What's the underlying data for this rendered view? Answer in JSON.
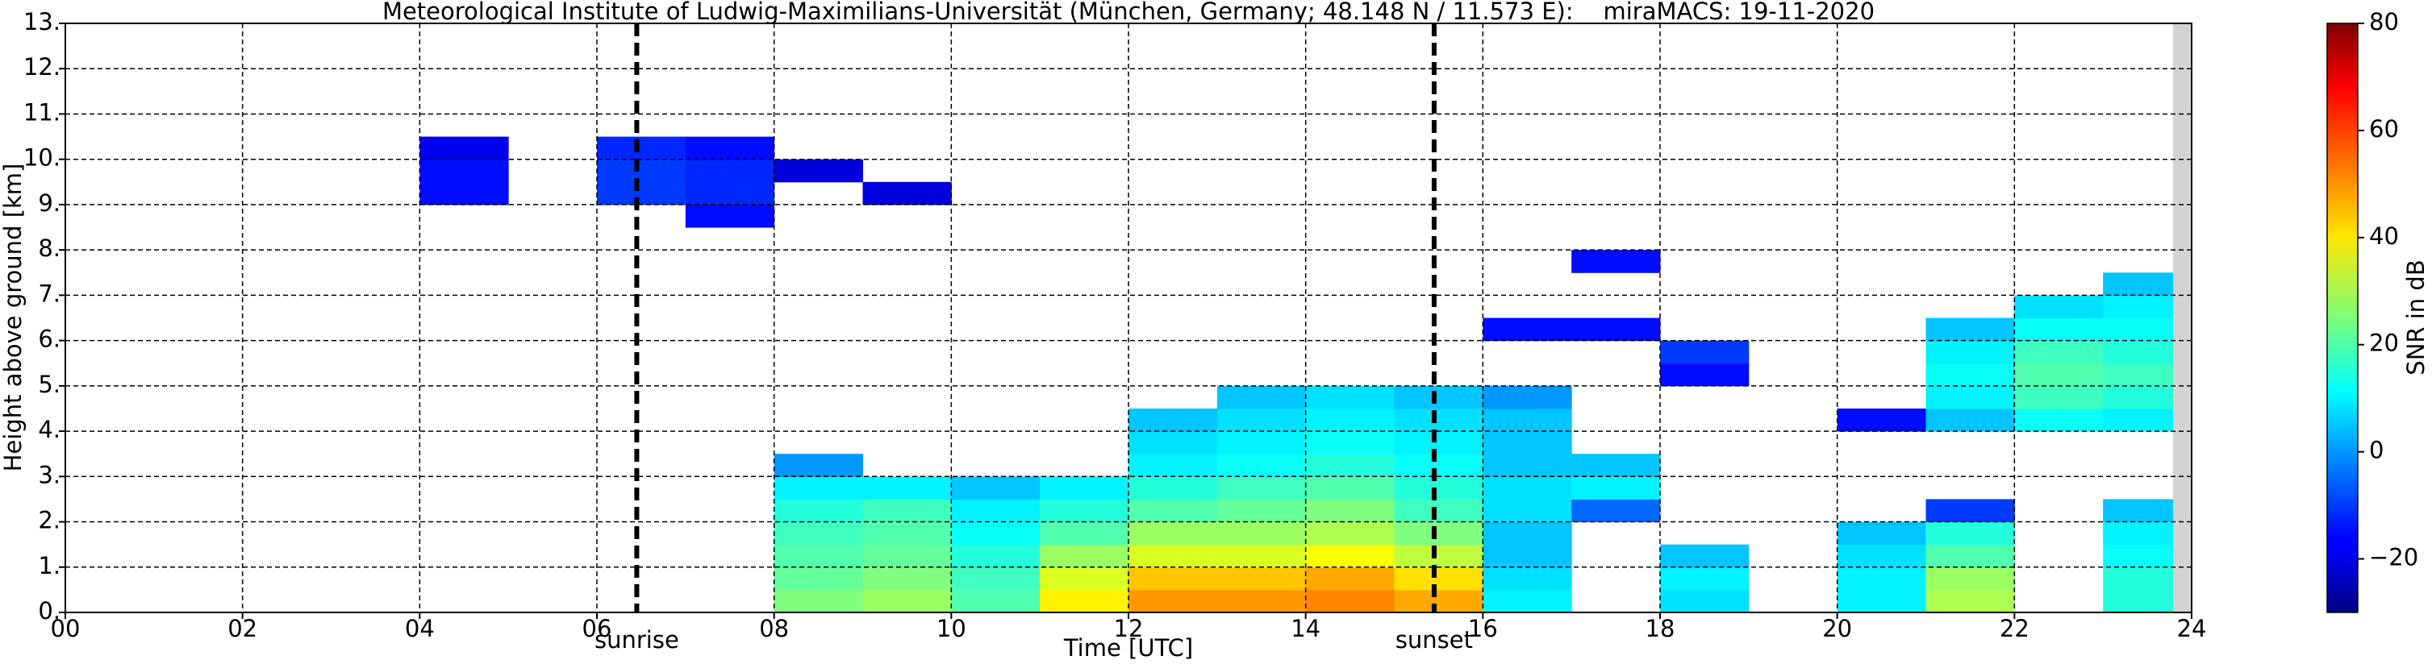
{
  "chart_data": {
    "type": "heatmap",
    "title": "Meteorological Institute of Ludwig-Maximilians-Universität (München, Germany; 48.148 N / 11.573 E):    miraMACS: 19-11-2020",
    "xlabel": "Time [UTC]",
    "ylabel": "Height above ground [km]",
    "colorbar_label": "SNR in dB",
    "colormap": "jet",
    "grid": true,
    "xlim": [
      0,
      24
    ],
    "ylim": [
      0,
      13
    ],
    "clim": [
      -30,
      80
    ],
    "xticks": [
      {
        "value": 0,
        "label": "00"
      },
      {
        "value": 2,
        "label": "02"
      },
      {
        "value": 4,
        "label": "04"
      },
      {
        "value": 6,
        "label": "06"
      },
      {
        "value": 8,
        "label": "08"
      },
      {
        "value": 10,
        "label": "10"
      },
      {
        "value": 12,
        "label": "12"
      },
      {
        "value": 14,
        "label": "14"
      },
      {
        "value": 16,
        "label": "16"
      },
      {
        "value": 18,
        "label": "18"
      },
      {
        "value": 20,
        "label": "20"
      },
      {
        "value": 22,
        "label": "22"
      },
      {
        "value": 24,
        "label": "24"
      }
    ],
    "yticks": [
      {
        "value": 0,
        "label": "0."
      },
      {
        "value": 1,
        "label": "1."
      },
      {
        "value": 2,
        "label": "2."
      },
      {
        "value": 3,
        "label": "3."
      },
      {
        "value": 4,
        "label": "4."
      },
      {
        "value": 5,
        "label": "5."
      },
      {
        "value": 6,
        "label": "6."
      },
      {
        "value": 7,
        "label": "7."
      },
      {
        "value": 8,
        "label": "8."
      },
      {
        "value": 9,
        "label": "9."
      },
      {
        "value": 10,
        "label": "10."
      },
      {
        "value": 11,
        "label": "11."
      },
      {
        "value": 12,
        "label": "12."
      },
      {
        "value": 13,
        "label": "13."
      }
    ],
    "cticks": [
      {
        "value": -20,
        "label": "−20"
      },
      0,
      20,
      40,
      60,
      80
    ],
    "annotations": [
      {
        "x": 6.45,
        "label": "sunrise"
      },
      {
        "x": 15.45,
        "label": "sunset"
      }
    ],
    "x_edges": [
      0,
      1,
      2,
      3,
      4,
      5,
      6,
      7,
      8,
      9,
      10,
      11,
      12,
      13,
      14,
      15,
      16,
      17,
      18,
      19,
      20,
      21,
      22,
      23,
      24
    ],
    "y_edges": [
      0,
      0.5,
      1,
      1.5,
      2,
      2.5,
      3,
      3.5,
      4,
      4.5,
      5,
      5.5,
      6,
      6.5,
      7,
      7.5,
      8,
      8.5,
      9,
      9.5,
      10,
      10.5
    ],
    "z": [
      [
        null,
        null,
        null,
        null,
        null,
        null,
        null,
        null,
        25,
        28,
        20,
        40,
        50,
        50,
        52,
        48,
        10,
        null,
        8,
        null,
        10,
        30,
        null,
        15
      ],
      [
        null,
        null,
        null,
        null,
        null,
        null,
        null,
        null,
        22,
        25,
        18,
        35,
        45,
        45,
        48,
        42,
        8,
        null,
        10,
        null,
        10,
        28,
        null,
        15
      ],
      [
        null,
        null,
        null,
        null,
        null,
        null,
        null,
        null,
        20,
        22,
        15,
        28,
        35,
        35,
        38,
        32,
        5,
        null,
        5,
        null,
        8,
        20,
        null,
        12
      ],
      [
        null,
        null,
        null,
        null,
        null,
        null,
        null,
        null,
        18,
        20,
        12,
        20,
        28,
        28,
        30,
        25,
        5,
        null,
        null,
        null,
        5,
        15,
        null,
        10
      ],
      [
        null,
        null,
        null,
        null,
        null,
        null,
        null,
        null,
        15,
        18,
        10,
        15,
        20,
        22,
        25,
        18,
        8,
        -5,
        null,
        null,
        null,
        -10,
        null,
        5
      ],
      [
        null,
        null,
        null,
        null,
        null,
        null,
        null,
        null,
        10,
        10,
        5,
        10,
        15,
        18,
        20,
        15,
        8,
        10,
        null,
        null,
        null,
        null,
        null,
        null
      ],
      [
        null,
        null,
        null,
        null,
        null,
        null,
        null,
        null,
        0,
        null,
        null,
        null,
        10,
        12,
        15,
        12,
        5,
        5,
        null,
        null,
        null,
        null,
        null,
        null
      ],
      [
        null,
        null,
        null,
        null,
        null,
        null,
        null,
        null,
        null,
        null,
        null,
        null,
        8,
        10,
        12,
        10,
        5,
        null,
        null,
        null,
        null,
        null,
        null,
        null
      ],
      [
        null,
        null,
        null,
        null,
        null,
        null,
        null,
        null,
        null,
        null,
        null,
        null,
        5,
        8,
        10,
        8,
        5,
        null,
        null,
        null,
        -15,
        5,
        12,
        10
      ],
      [
        null,
        null,
        null,
        null,
        null,
        null,
        null,
        null,
        null,
        null,
        null,
        null,
        null,
        5,
        8,
        5,
        0,
        null,
        null,
        null,
        null,
        10,
        18,
        15
      ],
      [
        null,
        null,
        null,
        null,
        null,
        null,
        null,
        null,
        null,
        null,
        null,
        null,
        null,
        null,
        null,
        null,
        null,
        null,
        -15,
        null,
        null,
        12,
        20,
        18
      ],
      [
        null,
        null,
        null,
        null,
        null,
        null,
        null,
        null,
        null,
        null,
        null,
        null,
        null,
        null,
        null,
        null,
        null,
        null,
        -10,
        null,
        null,
        10,
        18,
        15
      ],
      [
        null,
        null,
        null,
        null,
        null,
        null,
        null,
        null,
        null,
        null,
        null,
        null,
        null,
        null,
        null,
        null,
        -15,
        -15,
        null,
        null,
        null,
        5,
        12,
        12
      ],
      [
        null,
        null,
        null,
        null,
        null,
        null,
        null,
        null,
        null,
        null,
        null,
        null,
        null,
        null,
        null,
        null,
        null,
        null,
        null,
        null,
        null,
        null,
        8,
        10
      ],
      [
        null,
        null,
        null,
        null,
        null,
        null,
        null,
        null,
        null,
        null,
        null,
        null,
        null,
        null,
        null,
        null,
        null,
        null,
        null,
        null,
        null,
        null,
        null,
        5
      ],
      [
        null,
        null,
        null,
        null,
        null,
        null,
        null,
        null,
        null,
        null,
        null,
        null,
        null,
        null,
        null,
        null,
        null,
        -15,
        null,
        null,
        null,
        null,
        null,
        null
      ],
      [
        null,
        null,
        null,
        null,
        null,
        null,
        null,
        null,
        null,
        null,
        null,
        null,
        null,
        null,
        null,
        null,
        null,
        null,
        null,
        null,
        null,
        null,
        null,
        null
      ],
      [
        null,
        null,
        null,
        null,
        null,
        null,
        null,
        -15,
        null,
        null,
        null,
        null,
        null,
        null,
        null,
        null,
        null,
        null,
        null,
        null,
        null,
        null,
        null,
        null
      ],
      [
        null,
        null,
        null,
        null,
        -15,
        null,
        -10,
        -12,
        null,
        -20,
        null,
        null,
        null,
        null,
        null,
        null,
        null,
        null,
        null,
        null,
        null,
        null,
        null,
        null
      ],
      [
        null,
        null,
        null,
        null,
        -15,
        null,
        -10,
        -12,
        -20,
        null,
        null,
        null,
        null,
        null,
        null,
        null,
        null,
        null,
        null,
        null,
        null,
        null,
        null,
        null
      ],
      [
        null,
        null,
        null,
        null,
        -18,
        null,
        -12,
        -15,
        null,
        null,
        null,
        null,
        null,
        null,
        null,
        null,
        null,
        null,
        null,
        null,
        null,
        null,
        null,
        null
      ]
    ]
  }
}
